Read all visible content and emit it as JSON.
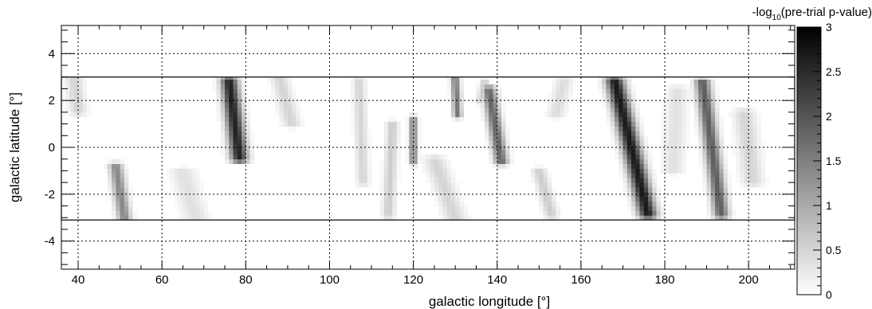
{
  "chart_data": {
    "type": "heatmap",
    "title": "",
    "xlabel": "galactic longitude [°]",
    "ylabel": "galactic latitude [°]",
    "xlim": [
      36,
      211
    ],
    "ylim": [
      -5.2,
      5.2
    ],
    "data_band": [
      -3.1,
      3.0
    ],
    "grid": true,
    "x_ticks": [
      40,
      60,
      80,
      100,
      120,
      140,
      160,
      180,
      200
    ],
    "y_ticks": [
      -4,
      -2,
      0,
      2,
      4
    ],
    "colorbar": {
      "label_prefix": "-log",
      "label_sub": "10",
      "label_suffix": "(pre-trial p-value)",
      "min": 0,
      "max": 3,
      "ticks": [
        0,
        0.5,
        1,
        1.5,
        2,
        2.5,
        3
      ],
      "tick_labels": [
        "0",
        "0.5",
        "1",
        "1.5",
        "2",
        "2.5",
        "3"
      ],
      "colormap": "grayscale-white-to-black"
    },
    "hotspots": [
      {
        "lon_top": 76,
        "lon_bottom": 78.5,
        "lat_top": 2.9,
        "lat_bottom": -0.5,
        "width": 2.0,
        "peak": 2.6
      },
      {
        "lon_top": 49,
        "lon_bottom": 51,
        "lat_top": -0.8,
        "lat_bottom": -3.0,
        "width": 1.6,
        "peak": 1.4
      },
      {
        "lon_top": 120,
        "lon_bottom": 120,
        "lat_top": 1.2,
        "lat_bottom": -0.6,
        "width": 0.9,
        "peak": 1.5
      },
      {
        "lon_top": 130,
        "lon_bottom": 130.5,
        "lat_top": 3.0,
        "lat_bottom": 1.4,
        "width": 1.0,
        "peak": 1.6
      },
      {
        "lon_top": 138,
        "lon_bottom": 141,
        "lat_top": 2.5,
        "lat_bottom": -0.6,
        "width": 1.6,
        "peak": 1.8
      },
      {
        "lon_top": 137,
        "lon_bottom": 136,
        "lat_top": 2.8,
        "lat_bottom": 2.0,
        "width": 1.0,
        "peak": 0.6
      },
      {
        "lon_top": 168,
        "lon_bottom": 176,
        "lat_top": 2.9,
        "lat_bottom": -2.9,
        "width": 2.2,
        "peak": 2.7
      },
      {
        "lon_top": 189,
        "lon_bottom": 193.5,
        "lat_top": 2.8,
        "lat_bottom": -2.9,
        "width": 1.8,
        "peak": 1.9
      },
      {
        "lon_top": 107,
        "lon_bottom": 108,
        "lat_top": 2.9,
        "lat_bottom": -1.5,
        "width": 1.4,
        "peak": 0.5
      },
      {
        "lon_top": 115,
        "lon_bottom": 114,
        "lat_top": 1.0,
        "lat_bottom": -2.9,
        "width": 1.4,
        "peak": 0.6
      },
      {
        "lon_top": 125,
        "lon_bottom": 130,
        "lat_top": -0.5,
        "lat_bottom": -3.0,
        "width": 2.5,
        "peak": 0.5
      },
      {
        "lon_top": 150,
        "lon_bottom": 153,
        "lat_top": -1.0,
        "lat_bottom": -2.9,
        "width": 1.6,
        "peak": 0.6
      },
      {
        "lon_top": 39,
        "lon_bottom": 40,
        "lat_top": 3.0,
        "lat_bottom": 1.5,
        "width": 2.0,
        "peak": 0.5
      },
      {
        "lon_top": 88,
        "lon_bottom": 91,
        "lat_top": 3.0,
        "lat_bottom": 1.0,
        "width": 2.0,
        "peak": 0.5
      },
      {
        "lon_top": 156,
        "lon_bottom": 154,
        "lat_top": 2.9,
        "lat_bottom": 1.4,
        "width": 2.0,
        "peak": 0.4
      },
      {
        "lon_top": 199,
        "lon_bottom": 201,
        "lat_top": 1.5,
        "lat_bottom": -1.5,
        "width": 2.5,
        "peak": 0.5
      },
      {
        "lon_top": 65,
        "lon_bottom": 68,
        "lat_top": -1.0,
        "lat_bottom": -3.0,
        "width": 3.0,
        "peak": 0.35
      },
      {
        "lon_top": 183,
        "lon_bottom": 182,
        "lat_top": 2.5,
        "lat_bottom": -1.0,
        "width": 2.5,
        "peak": 0.35
      }
    ]
  }
}
